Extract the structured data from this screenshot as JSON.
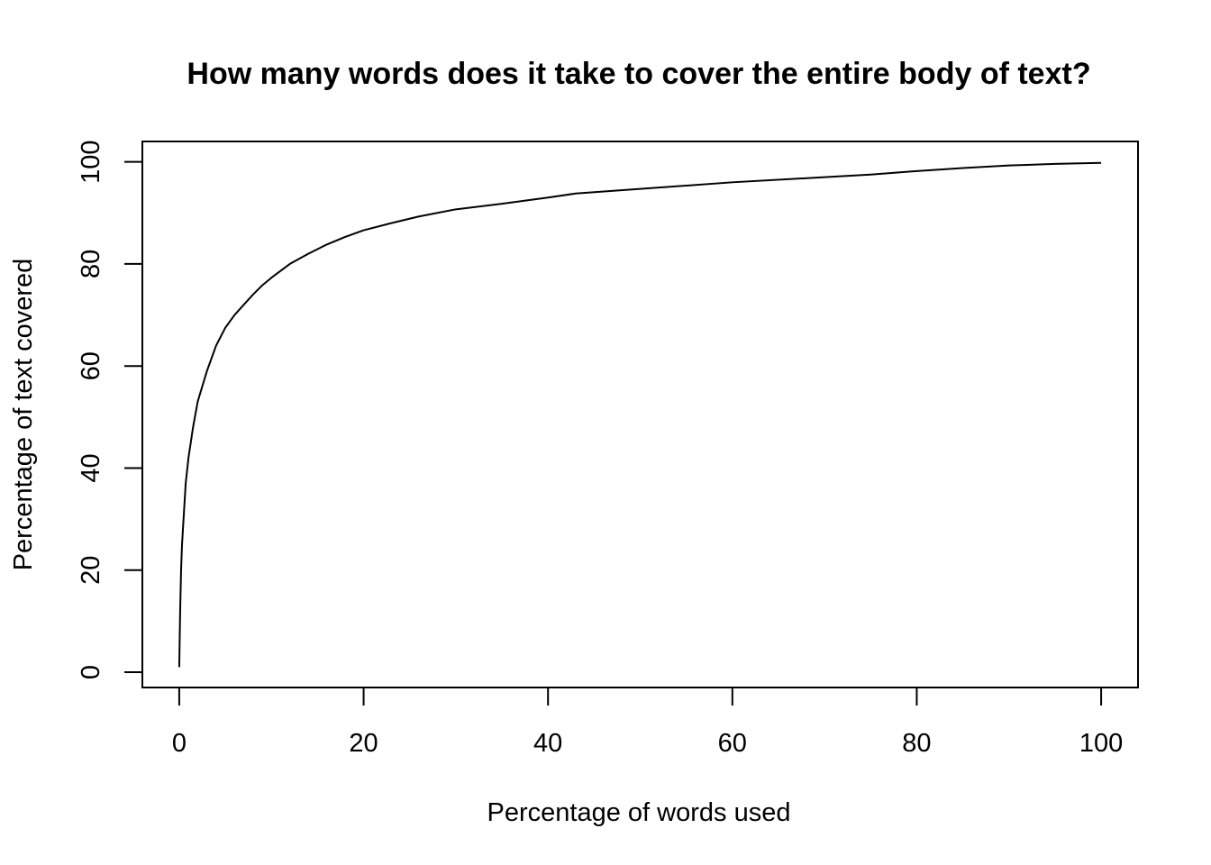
{
  "chart_data": {
    "type": "line",
    "title": "How many words does it take to cover the entire body of text?",
    "xlabel": "Percentage of words used",
    "ylabel": "Percentage of text covered",
    "xlim": [
      -4,
      104
    ],
    "ylim": [
      -3,
      104
    ],
    "xticks": [
      0,
      20,
      40,
      60,
      80,
      100
    ],
    "yticks": [
      0,
      20,
      40,
      60,
      80,
      100
    ],
    "xtick_labels": [
      "0",
      "20",
      "40",
      "60",
      "80",
      "100"
    ],
    "ytick_labels": [
      "0",
      "20",
      "40",
      "60",
      "80",
      "100"
    ],
    "grid": false,
    "series": [
      {
        "color": "#000000",
        "x": [
          0,
          0.1,
          0.2,
          0.3,
          0.5,
          0.7,
          1.0,
          1.5,
          2,
          2.5,
          3,
          4,
          5,
          6,
          7,
          8,
          9,
          10,
          12,
          14,
          16,
          18,
          20,
          23,
          26,
          30,
          35,
          40,
          43,
          50,
          60,
          70,
          75,
          80,
          85,
          90,
          95,
          100
        ],
        "y": [
          1,
          12,
          20,
          25,
          31,
          37,
          42,
          48,
          53,
          56,
          59,
          64,
          67.5,
          70,
          72,
          74,
          75.8,
          77.3,
          80,
          82,
          83.8,
          85.3,
          86.6,
          88,
          89.3,
          90.7,
          91.8,
          93,
          93.8,
          94.7,
          96,
          97,
          97.5,
          98.2,
          98.8,
          99.3,
          99.6,
          99.8
        ]
      }
    ]
  }
}
